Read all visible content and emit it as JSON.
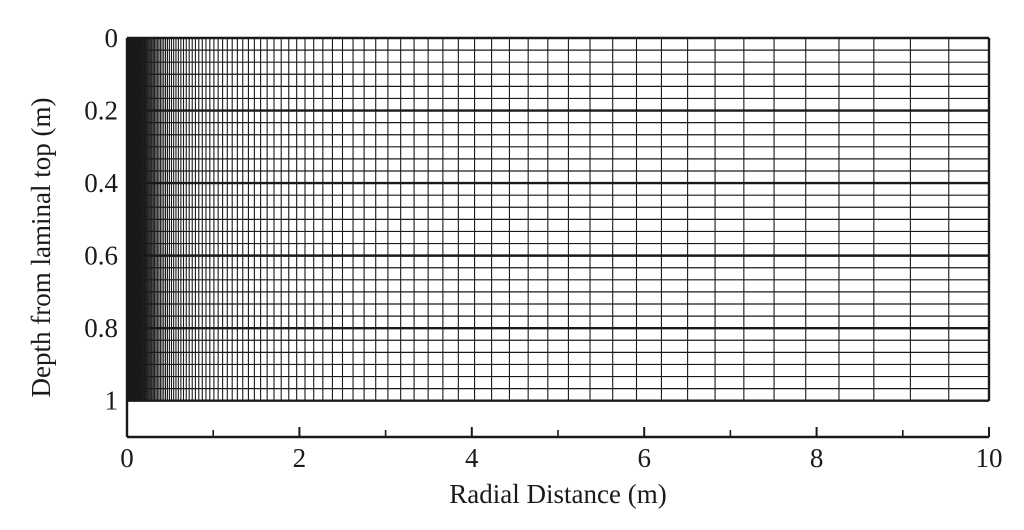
{
  "chart_data": {
    "type": "mesh",
    "title": "",
    "xlabel": "Radial Distance (m)",
    "ylabel": "Depth from laminal top  (m)",
    "xlim": [
      0,
      10
    ],
    "ylim": [
      1.1,
      0
    ],
    "y_inverted": true,
    "x_ticks": [
      0,
      2,
      4,
      6,
      8,
      10
    ],
    "x_minor_ticks": [
      1,
      3,
      5,
      7,
      9
    ],
    "y_ticks": [
      0,
      0.2,
      0.4,
      0.6,
      0.8,
      1
    ],
    "x_tick_labels": [
      "0",
      "2",
      "4",
      "6",
      "8",
      "10"
    ],
    "y_tick_labels": [
      "0",
      "0.2",
      "0.4",
      "0.6",
      "0.8",
      "1"
    ],
    "mesh": {
      "domain_x": [
        0,
        10
      ],
      "domain_y": [
        0,
        1
      ],
      "horizontal_line_count": 31,
      "vertical_line_spacing": "logarithmic, dense near r = 0, approx. 0.25 m near r = 10",
      "emphasized_horizontal_lines": [
        0,
        0.2,
        0.4,
        0.6,
        0.8,
        1
      ],
      "grid_color": "#1a1a1a"
    }
  }
}
